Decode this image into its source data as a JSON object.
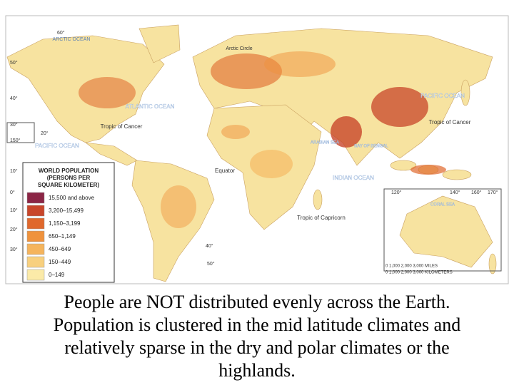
{
  "map": {
    "labels": [
      "ARCTIC OCEAN",
      "Arctic Circle",
      "ATLANTIC OCEAN",
      "PACIFIC OCEAN",
      "PACIFIC OCEAN",
      "INDIAN OCEAN",
      "Tropic of Cancer",
      "Tropic of Cancer",
      "Equator",
      "Tropic of Capricorn",
      "ARABIAN SEA",
      "BAY OF BENGAL",
      "CORAL SEA"
    ],
    "gridlabels": [
      "60°",
      "50°",
      "40°",
      "30°",
      "20°",
      "10°",
      "0°",
      "10°",
      "20°",
      "30°",
      "40°",
      "50°",
      "150°",
      "120°",
      "140°",
      "160°",
      "170°"
    ],
    "scale": [
      "0   1,000   2,000   3,000 MILES",
      "0   1,000  2,000  3,000 KILOMETERS"
    ],
    "legend": {
      "title": [
        "WORLD POPULATION",
        "(PERSONS PER",
        "SQUARE KILOMETER)"
      ],
      "entries": [
        {
          "label": "15,500 and above",
          "color": "#8b2545"
        },
        {
          "label": "3,200–15,499",
          "color": "#c8462a"
        },
        {
          "label": "1,150–3,199",
          "color": "#e0682c"
        },
        {
          "label": "650–1,149",
          "color": "#ef923c"
        },
        {
          "label": "450–649",
          "color": "#f5b45c"
        },
        {
          "label": "150–449",
          "color": "#f8d07e"
        },
        {
          "label": "0–149",
          "color": "#fbeaa8"
        }
      ]
    }
  },
  "caption": [
    "People are NOT distributed evenly across the Earth.",
    "Population is clustered in the mid latitude climates and",
    "relatively sparse in the dry and polar climates or the",
    "highlands."
  ]
}
